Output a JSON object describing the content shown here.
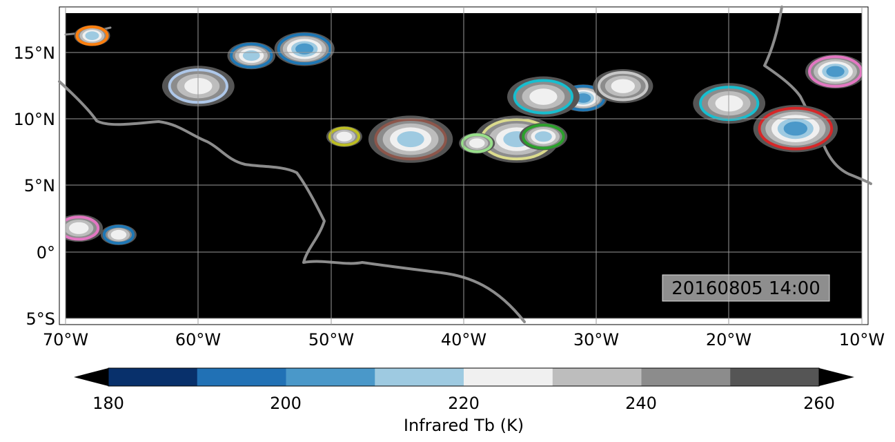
{
  "map": {
    "lon_ticks": [
      "70°W",
      "60°W",
      "50°W",
      "40°W",
      "30°W",
      "20°W",
      "10°W"
    ],
    "lat_ticks": [
      "5°S",
      "0°",
      "5°N",
      "10°N",
      "15°N"
    ],
    "lon_range": [
      -70,
      -10
    ],
    "lat_range": [
      -5,
      18
    ],
    "background_color": "#000000",
    "coastline_color": "#808080",
    "grid": true,
    "timestamp": "20160805 14:00"
  },
  "colorbar": {
    "label": "Infrared Tb (K)",
    "ticks": [
      "180",
      "200",
      "220",
      "240",
      "260"
    ],
    "levels": [
      180,
      190,
      200,
      210,
      220,
      230,
      240,
      250,
      260
    ],
    "colors": [
      "#08306b",
      "#2171b5",
      "#4a98c9",
      "#9ecae1",
      "#f0f0f0",
      "#bdbdbd",
      "#8c8c8c",
      "#555555"
    ],
    "extend": "both"
  },
  "chart_data": {
    "type": "heatmap",
    "title": "",
    "xlabel": "",
    "ylabel": "",
    "colorbar_label": "Infrared Tb (K)",
    "xlim": [
      -70,
      -10
    ],
    "ylim": [
      -5,
      18
    ],
    "annotation": "20160805 14:00",
    "track_outline_colors": [
      "#ff7f0e",
      "#2ca02c",
      "#1f77b4",
      "#9467bd",
      "#d62728",
      "#17becf",
      "#e377c2",
      "#bcbd22",
      "#8c564b",
      "#98df8a",
      "#ff9896",
      "#aec7e8",
      "#c5b0d5",
      "#dbdb8d",
      "#9edae5"
    ],
    "cloud_systems": [
      {
        "lon": -68,
        "lat": 16.3,
        "tb_min": 205,
        "outline": "#ff7f0e"
      },
      {
        "lon": -56,
        "lat": 14.8,
        "tb_min": 205,
        "outline": "#1f77b4"
      },
      {
        "lon": -52,
        "lat": 15.3,
        "tb_min": 195,
        "outline": "#1f77b4"
      },
      {
        "lon": -60,
        "lat": 12.5,
        "tb_min": 215,
        "outline": "#aec7e8"
      },
      {
        "lon": -44,
        "lat": 8.5,
        "tb_min": 205,
        "outline": "#8c564b"
      },
      {
        "lon": -49,
        "lat": 8.7,
        "tb_min": 215,
        "outline": "#bcbd22"
      },
      {
        "lon": -31,
        "lat": 11.6,
        "tb_min": 200,
        "outline": "#1f77b4"
      },
      {
        "lon": -28,
        "lat": 12.5,
        "tb_min": 220,
        "outline": "#c7c7c7"
      },
      {
        "lon": -34,
        "lat": 11.7,
        "tb_min": 215,
        "outline": "#17becf"
      },
      {
        "lon": -15,
        "lat": 9.3,
        "tb_min": 195,
        "outline": "#d62728"
      },
      {
        "lon": -66,
        "lat": 1.3,
        "tb_min": 215,
        "outline": "#1f77b4"
      },
      {
        "lon": -69,
        "lat": 1.8,
        "tb_min": 220,
        "outline": "#e377c2"
      },
      {
        "lon": -12,
        "lat": 13.6,
        "tb_min": 200,
        "outline": "#e377c2"
      },
      {
        "lon": -20,
        "lat": 11.2,
        "tb_min": 215,
        "outline": "#17becf"
      },
      {
        "lon": -36,
        "lat": 8.5,
        "tb_min": 210,
        "outline": "#dbdb8d"
      },
      {
        "lon": -39,
        "lat": 8.2,
        "tb_min": 220,
        "outline": "#98df8a"
      },
      {
        "lon": -34,
        "lat": 8.7,
        "tb_min": 205,
        "outline": "#2ca02c"
      }
    ]
  }
}
